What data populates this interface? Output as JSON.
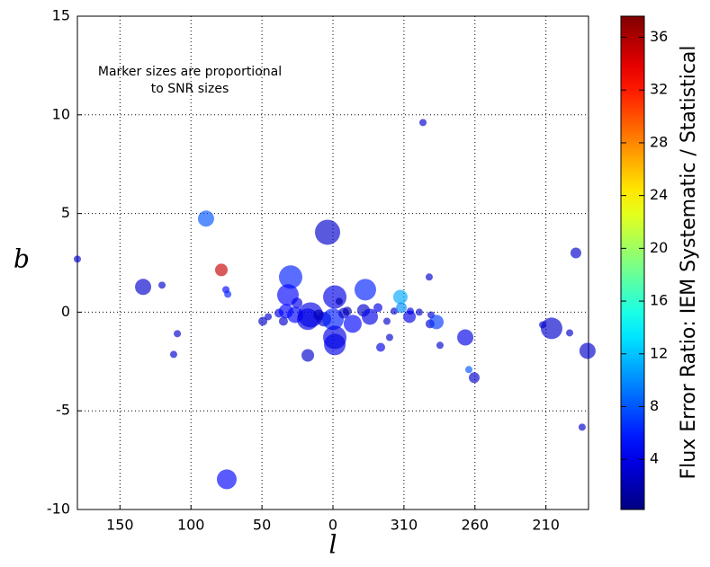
{
  "chart_data": {
    "type": "scatter",
    "annotation": [
      "Marker sizes are proportional",
      "to SNR sizes"
    ],
    "xlabel": "l",
    "ylabel": "b",
    "xlim": [
      180,
      -180
    ],
    "xticks": [
      150,
      100,
      50,
      0,
      {
        "value": -50,
        "label": "310"
      },
      {
        "value": -100,
        "label": "260"
      },
      {
        "value": -150,
        "label": "210"
      }
    ],
    "ylim": [
      -10,
      15
    ],
    "yticks": [
      -10,
      -5,
      0,
      5,
      10,
      15
    ],
    "grid": true,
    "x": [
      180,
      133.7,
      120.4,
      109.6,
      112.2,
      89.4,
      78.6,
      75.4,
      74.1,
      74.8,
      49.4,
      45.6,
      38.0,
      34.9,
      29.8,
      31.7,
      33.0,
      25.3,
      26.6,
      17.7,
      17.7,
      15.8,
      10.1,
      6.3,
      3.8,
      -1.3,
      0,
      -1.3,
      -1.3,
      -4.4,
      -7.6,
      -10.1,
      -13.9,
      -22.8,
      -21.5,
      -26.0,
      -31.7,
      -33.6,
      -38.0,
      -39.9,
      -43.1,
      -47.5,
      -48.2,
      -54.5,
      -53.9,
      -60.8,
      -63.4,
      -67.8,
      -69.1,
      -68.4,
      -72.9,
      -75.4,
      -93.2,
      -95.7,
      -99.5,
      -147.7,
      -154,
      -166.7,
      -171.1,
      -175.5,
      -179.3
    ],
    "y": [
      2.69,
      1.28,
      1.37,
      -1.09,
      -2.14,
      4.74,
      2.14,
      1.14,
      0.91,
      -8.47,
      -0.46,
      -0.23,
      -0.05,
      -0.46,
      1.78,
      0.87,
      0.05,
      0.46,
      -0.14,
      -2.19,
      -0.36,
      -0.14,
      -0.14,
      -0.36,
      4.05,
      0.77,
      -0.36,
      -1.28,
      -1.64,
      0.55,
      -0.05,
      0.05,
      -0.59,
      1.14,
      0.09,
      -0.23,
      0.23,
      -1.78,
      -0.46,
      -1.28,
      0.05,
      0.77,
      0.23,
      0.05,
      -0.23,
      0,
      9.61,
      1.78,
      -0.14,
      -0.59,
      -0.5,
      -1.68,
      -1.28,
      -2.91,
      -3.32,
      -0.64,
      -0.82,
      -1.05,
      3.0,
      -5.83,
      -1.96
    ],
    "sizes": [
      4,
      9,
      4,
      4,
      4,
      9,
      7,
      4,
      4,
      11,
      5,
      4,
      5,
      5,
      13,
      12,
      8,
      6,
      9,
      7,
      12,
      14,
      6,
      8,
      14,
      13,
      12,
      13,
      12,
      4,
      6,
      5,
      10,
      12,
      7,
      9,
      5,
      5,
      4,
      4,
      4,
      8,
      6,
      4,
      7,
      4,
      4,
      4,
      4,
      5,
      8,
      4,
      9,
      4,
      6,
      4,
      12,
      4,
      6,
      4,
      9
    ],
    "color_values": [
      3,
      3,
      3,
      3,
      3,
      8,
      35,
      5,
      6,
      5,
      3,
      3,
      4,
      3,
      6,
      5,
      5,
      4,
      5,
      3,
      4,
      4,
      2,
      3,
      3,
      4,
      6,
      4,
      4,
      2,
      3,
      2,
      5,
      6,
      3,
      4,
      4,
      4,
      3,
      3,
      3,
      11,
      10,
      4,
      4,
      3,
      3,
      3,
      3,
      3,
      7,
      3,
      4,
      8,
      3,
      3,
      3,
      3,
      3,
      3,
      3
    ],
    "colorbar": {
      "label": "Flux Error Ratio: IEM Systematic / Statistical",
      "colormap": "jet",
      "clim": [
        0.2,
        37.6
      ],
      "ticks": [
        4,
        8,
        12,
        16,
        20,
        24,
        28,
        32,
        36
      ]
    }
  }
}
